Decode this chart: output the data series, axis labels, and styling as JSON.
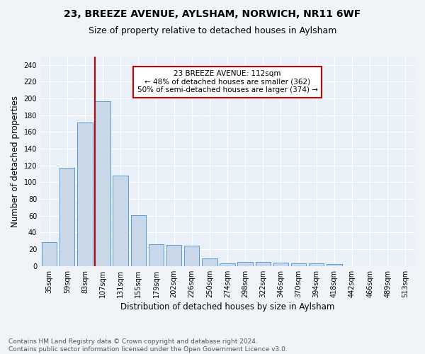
{
  "title1": "23, BREEZE AVENUE, AYLSHAM, NORWICH, NR11 6WF",
  "title2": "Size of property relative to detached houses in Aylsham",
  "xlabel": "Distribution of detached houses by size in Aylsham",
  "ylabel": "Number of detached properties",
  "bar_labels": [
    "35sqm",
    "59sqm",
    "83sqm",
    "107sqm",
    "131sqm",
    "155sqm",
    "179sqm",
    "202sqm",
    "226sqm",
    "250sqm",
    "274sqm",
    "298sqm",
    "322sqm",
    "346sqm",
    "370sqm",
    "394sqm",
    "418sqm",
    "442sqm",
    "466sqm",
    "489sqm",
    "513sqm"
  ],
  "bar_heights": [
    29,
    117,
    171,
    197,
    108,
    61,
    26,
    25,
    24,
    9,
    3,
    5,
    5,
    4,
    3,
    3,
    2,
    0,
    0,
    0,
    0
  ],
  "bar_color": "#c8d8e8",
  "bar_edgecolor": "#5b9bd5",
  "reference_line_index": 3,
  "annotation_text": "23 BREEZE AVENUE: 112sqm\n← 48% of detached houses are smaller (362)\n50% of semi-detached houses are larger (374) →",
  "annotation_box_color": "#ffffff",
  "annotation_box_edgecolor": "#cc0000",
  "reference_line_color": "#cc0000",
  "ylim": [
    0,
    250
  ],
  "yticks": [
    0,
    20,
    40,
    60,
    80,
    100,
    120,
    140,
    160,
    180,
    200,
    220,
    240
  ],
  "footnote": "Contains HM Land Registry data © Crown copyright and database right 2024.\nContains public sector information licensed under the Open Government Licence v3.0.",
  "background_color": "#eaf0f8",
  "grid_color": "#ffffff",
  "title1_fontsize": 10,
  "title2_fontsize": 9,
  "xlabel_fontsize": 8.5,
  "ylabel_fontsize": 8.5,
  "tick_fontsize": 7,
  "annotation_fontsize": 7.5,
  "footnote_fontsize": 6.5
}
